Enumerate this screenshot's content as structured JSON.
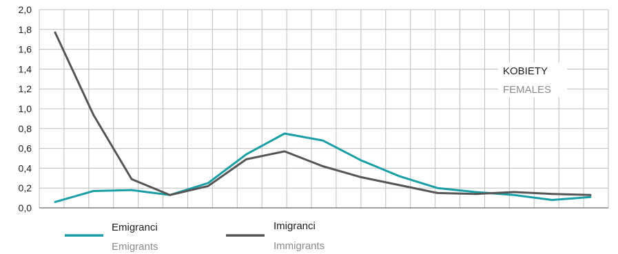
{
  "chart_data": {
    "type": "line",
    "title": "",
    "xlabel": "",
    "ylabel": "",
    "ylim": [
      0,
      2.0
    ],
    "yticks": [
      "0,0",
      "0,2",
      "0,4",
      "0,6",
      "0,8",
      "1,0",
      "1,2",
      "1,4",
      "1,6",
      "1,8",
      "2,0"
    ],
    "grid": true,
    "annotation": {
      "line1": "KOBIETY",
      "line2": "FEMALES"
    },
    "series": [
      {
        "name": "Emigranci",
        "name_en": "Emigrants",
        "color": "#1a9ea6",
        "values": [
          0.06,
          0.17,
          0.18,
          0.13,
          0.25,
          0.54,
          0.75,
          0.68,
          0.48,
          0.32,
          0.2,
          0.16,
          0.13,
          0.08,
          0.11
        ]
      },
      {
        "name": "Imigranci",
        "name_en": "Immigrants",
        "color": "#555555",
        "values": [
          1.77,
          0.94,
          0.29,
          0.13,
          0.22,
          0.49,
          0.57,
          0.42,
          0.31,
          0.23,
          0.15,
          0.14,
          0.16,
          0.14,
          0.13
        ]
      }
    ]
  }
}
